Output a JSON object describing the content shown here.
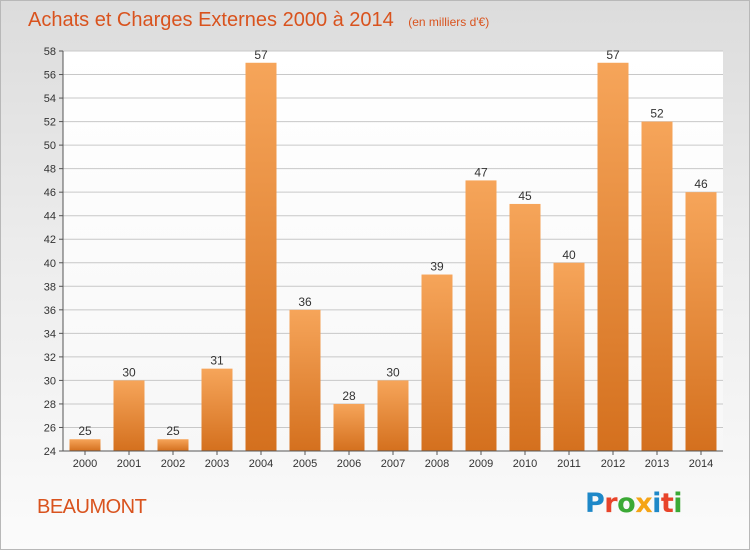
{
  "header": {
    "title": "Achats et Charges Externes 2000 à 2014",
    "unit": "(en milliers d'€)"
  },
  "footer": {
    "city": "BEAUMONT",
    "logo_text": "Proxiti",
    "logo_colors": [
      "#1e88c8",
      "#e8442a",
      "#3ba935",
      "#f5a416",
      "#1e88c8",
      "#e8442a",
      "#3ba935"
    ]
  },
  "colors": {
    "title": "#d9531e",
    "bar_top": "#f6a55a",
    "bar_bottom": "#d4701e",
    "grid": "#c8c8c8"
  },
  "chart_data": {
    "type": "bar",
    "title": "Achats et Charges Externes 2000 à 2014",
    "subtitle": "(en milliers d'€)",
    "xlabel": "",
    "ylabel": "",
    "categories": [
      "2000",
      "2001",
      "2002",
      "2003",
      "2004",
      "2005",
      "2006",
      "2007",
      "2008",
      "2009",
      "2010",
      "2011",
      "2012",
      "2013",
      "2014"
    ],
    "values": [
      25,
      30,
      25,
      31,
      57,
      36,
      28,
      30,
      39,
      47,
      45,
      40,
      57,
      52,
      46
    ],
    "ylim": [
      24,
      58
    ],
    "yticks": [
      24,
      26,
      28,
      30,
      32,
      34,
      36,
      38,
      40,
      42,
      44,
      46,
      48,
      50,
      52,
      54,
      56,
      58
    ],
    "grid": true,
    "data_labels": true,
    "legend": "none"
  }
}
